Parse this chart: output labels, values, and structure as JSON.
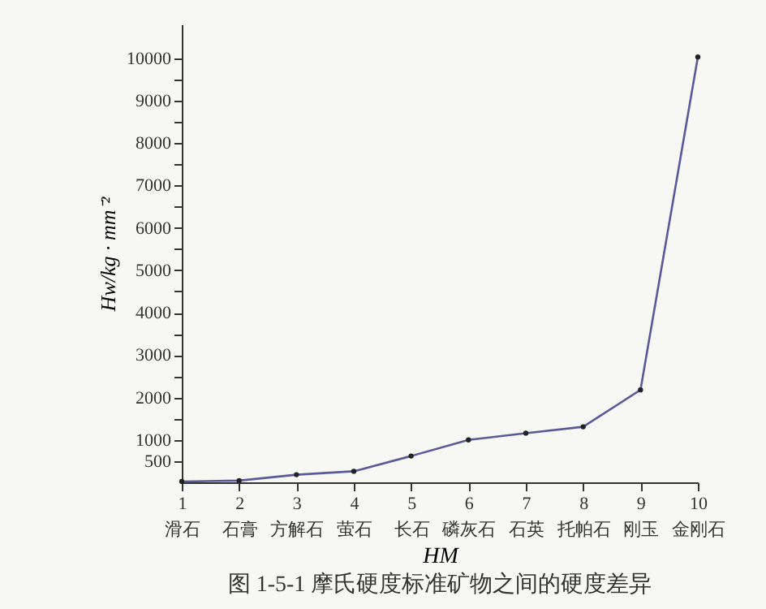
{
  "chart_data": {
    "type": "line",
    "title": "图 1-5-1 摩氏硬度标准矿物之间的硬度差异",
    "xlabel": "HM",
    "ylabel": "Hw/kg · mm⁻²",
    "categories": [
      "1\n滑石",
      "2\n石膏",
      "3\n方解石",
      "4\n萤石",
      "5\n长石",
      "6\n磷灰石",
      "7\n石英",
      "8\n托帕石",
      "9\n刚玉",
      "10\n金刚石"
    ],
    "series": [
      {
        "color": "#5a5a9a",
        "values": [
          20,
          40,
          180,
          260,
          620,
          1000,
          1160,
          1310,
          2180,
          10030
        ]
      }
    ],
    "ylim": [
      0,
      10800
    ],
    "yticks": [
      500,
      1000,
      {
        "value": 1500,
        "label": null
      },
      2000,
      {
        "value": 2500,
        "label": null
      },
      3000,
      {
        "value": 3500,
        "label": null
      },
      4000,
      {
        "value": 4500,
        "label": null
      },
      5000,
      {
        "value": 5500,
        "label": null
      },
      6000,
      {
        "value": 6500,
        "label": null
      },
      7000,
      {
        "value": 7500,
        "label": null
      },
      8000,
      {
        "value": 8500,
        "label": null
      },
      9000,
      {
        "value": 9500,
        "label": null
      },
      10000
    ],
    "marker": "circle",
    "line_style": "solid",
    "grid": false
  }
}
